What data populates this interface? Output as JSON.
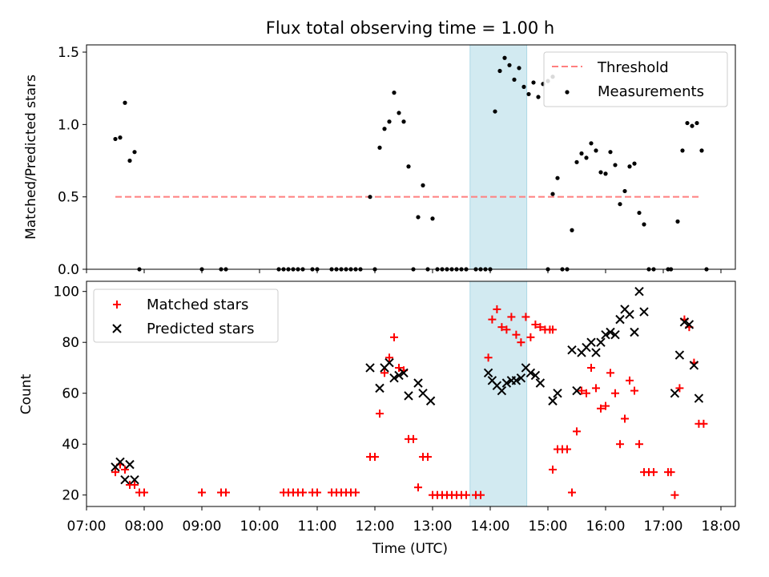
{
  "figure": {
    "title": "Flux total observing time = 1.00 h",
    "xlabel": "Time (UTC)",
    "x_ticks": [
      "07:00",
      "08:00",
      "09:00",
      "10:00",
      "11:00",
      "12:00",
      "13:00",
      "14:00",
      "15:00",
      "16:00",
      "17:00",
      "18:00"
    ]
  },
  "chart_data": [
    {
      "type": "scatter",
      "panel": "top",
      "ylabel": "Matched/Predicted stars",
      "xlim": [
        "07:00",
        "18:15"
      ],
      "ylim": [
        0,
        1.55
      ],
      "y_ticks": [
        "0.0",
        "0.5",
        "1.0",
        "1.5"
      ],
      "legend_position": "top-right",
      "highlight_span": {
        "start": "13:39",
        "end": "14:38",
        "color": "#add8e6"
      },
      "series": [
        {
          "name": "Threshold",
          "kind": "dashed-line",
          "color": "#ff7f7f",
          "points": [
            [
              "07:30",
              0.5
            ],
            [
              "17:40",
              0.5
            ]
          ]
        },
        {
          "name": "Measurements",
          "kind": "dot",
          "color": "#000000",
          "points": [
            [
              "07:30",
              0.9
            ],
            [
              "07:35",
              0.91
            ],
            [
              "07:40",
              1.15
            ],
            [
              "07:45",
              0.75
            ],
            [
              "07:50",
              0.81
            ],
            [
              "07:55",
              0.0
            ],
            [
              "09:00",
              0.0
            ],
            [
              "09:20",
              0.0
            ],
            [
              "09:25",
              0.0
            ],
            [
              "10:20",
              0.0
            ],
            [
              "10:25",
              0.0
            ],
            [
              "10:30",
              0.0
            ],
            [
              "10:35",
              0.0
            ],
            [
              "10:40",
              0.0
            ],
            [
              "10:45",
              0.0
            ],
            [
              "10:55",
              0.0
            ],
            [
              "11:00",
              0.0
            ],
            [
              "11:15",
              0.0
            ],
            [
              "11:20",
              0.0
            ],
            [
              "11:25",
              0.0
            ],
            [
              "11:30",
              0.0
            ],
            [
              "11:35",
              0.0
            ],
            [
              "11:40",
              0.0
            ],
            [
              "11:45",
              0.0
            ],
            [
              "11:55",
              0.5
            ],
            [
              "12:00",
              0.0
            ],
            [
              "12:05",
              0.84
            ],
            [
              "12:10",
              0.97
            ],
            [
              "12:15",
              1.02
            ],
            [
              "12:20",
              1.22
            ],
            [
              "12:25",
              1.08
            ],
            [
              "12:30",
              1.02
            ],
            [
              "12:35",
              0.71
            ],
            [
              "12:40",
              0.0
            ],
            [
              "12:45",
              0.36
            ],
            [
              "12:50",
              0.58
            ],
            [
              "12:55",
              0.0
            ],
            [
              "13:00",
              0.35
            ],
            [
              "13:05",
              0.0
            ],
            [
              "13:10",
              0.0
            ],
            [
              "13:15",
              0.0
            ],
            [
              "13:20",
              0.0
            ],
            [
              "13:25",
              0.0
            ],
            [
              "13:30",
              0.0
            ],
            [
              "13:35",
              0.0
            ],
            [
              "13:45",
              0.0
            ],
            [
              "13:50",
              0.0
            ],
            [
              "13:55",
              0.0
            ],
            [
              "14:00",
              0.0
            ],
            [
              "14:05",
              1.09
            ],
            [
              "14:10",
              1.37
            ],
            [
              "14:15",
              1.46
            ],
            [
              "14:20",
              1.41
            ],
            [
              "14:25",
              1.31
            ],
            [
              "14:30",
              1.39
            ],
            [
              "14:35",
              1.26
            ],
            [
              "14:40",
              1.21
            ],
            [
              "14:45",
              1.29
            ],
            [
              "14:50",
              1.19
            ],
            [
              "14:55",
              1.28
            ],
            [
              "15:00",
              1.3
            ],
            [
              "15:05",
              1.33
            ],
            [
              "15:00",
              0.0
            ],
            [
              "15:05",
              0.52
            ],
            [
              "15:10",
              0.63
            ],
            [
              "15:15",
              0.0
            ],
            [
              "15:20",
              0.0
            ],
            [
              "15:25",
              0.27
            ],
            [
              "15:30",
              0.74
            ],
            [
              "15:35",
              0.8
            ],
            [
              "15:40",
              0.77
            ],
            [
              "15:45",
              0.87
            ],
            [
              "15:50",
              0.82
            ],
            [
              "15:55",
              0.67
            ],
            [
              "16:00",
              0.66
            ],
            [
              "16:05",
              0.81
            ],
            [
              "16:10",
              0.72
            ],
            [
              "16:15",
              0.45
            ],
            [
              "16:20",
              0.54
            ],
            [
              "16:25",
              0.71
            ],
            [
              "16:30",
              0.73
            ],
            [
              "16:35",
              0.39
            ],
            [
              "16:40",
              0.31
            ],
            [
              "16:45",
              0.0
            ],
            [
              "16:50",
              0.0
            ],
            [
              "17:05",
              0.0
            ],
            [
              "17:08",
              0.0
            ],
            [
              "17:15",
              0.33
            ],
            [
              "17:20",
              0.82
            ],
            [
              "17:25",
              1.01
            ],
            [
              "17:30",
              0.99
            ],
            [
              "17:35",
              1.01
            ],
            [
              "17:40",
              0.82
            ],
            [
              "17:45",
              0.0
            ]
          ]
        }
      ]
    },
    {
      "type": "scatter",
      "panel": "bottom",
      "ylabel": "Count",
      "xlabel": "Time (UTC)",
      "xlim": [
        "07:00",
        "18:15"
      ],
      "ylim": [
        15.5,
        104
      ],
      "y_ticks": [
        "20",
        "40",
        "60",
        "80",
        "100"
      ],
      "legend_position": "top-left",
      "highlight_span": {
        "start": "13:39",
        "end": "14:38",
        "color": "#add8e6"
      },
      "series": [
        {
          "name": "Matched stars",
          "kind": "plus",
          "color": "#ff0000",
          "points": [
            [
              "07:30",
              29
            ],
            [
              "07:35",
              32
            ],
            [
              "07:40",
              30
            ],
            [
              "07:45",
              24
            ],
            [
              "07:50",
              24
            ],
            [
              "07:55",
              21
            ],
            [
              "08:00",
              21
            ],
            [
              "09:00",
              21
            ],
            [
              "09:20",
              21
            ],
            [
              "09:25",
              21
            ],
            [
              "10:25",
              21
            ],
            [
              "10:30",
              21
            ],
            [
              "10:35",
              21
            ],
            [
              "10:40",
              21
            ],
            [
              "10:45",
              21
            ],
            [
              "10:55",
              21
            ],
            [
              "11:00",
              21
            ],
            [
              "11:15",
              21
            ],
            [
              "11:20",
              21
            ],
            [
              "11:25",
              21
            ],
            [
              "11:30",
              21
            ],
            [
              "11:35",
              21
            ],
            [
              "11:40",
              21
            ],
            [
              "11:55",
              35
            ],
            [
              "12:00",
              35
            ],
            [
              "12:05",
              52
            ],
            [
              "12:10",
              68
            ],
            [
              "12:15",
              74
            ],
            [
              "12:20",
              82
            ],
            [
              "12:25",
              70
            ],
            [
              "12:30",
              69
            ],
            [
              "12:35",
              42
            ],
            [
              "12:40",
              42
            ],
            [
              "12:45",
              23
            ],
            [
              "12:50",
              35
            ],
            [
              "12:55",
              35
            ],
            [
              "13:00",
              20
            ],
            [
              "13:05",
              20
            ],
            [
              "13:10",
              20
            ],
            [
              "13:15",
              20
            ],
            [
              "13:20",
              20
            ],
            [
              "13:25",
              20
            ],
            [
              "13:30",
              20
            ],
            [
              "13:35",
              20
            ],
            [
              "13:45",
              20
            ],
            [
              "13:50",
              20
            ],
            [
              "13:58",
              74
            ],
            [
              "14:02",
              89
            ],
            [
              "14:07",
              93
            ],
            [
              "14:12",
              86
            ],
            [
              "14:17",
              85
            ],
            [
              "14:22",
              90
            ],
            [
              "14:27",
              83
            ],
            [
              "14:32",
              80
            ],
            [
              "14:37",
              90
            ],
            [
              "14:42",
              82
            ],
            [
              "14:47",
              87
            ],
            [
              "14:52",
              86
            ],
            [
              "14:57",
              85
            ],
            [
              "15:02",
              85
            ],
            [
              "15:05",
              85
            ],
            [
              "15:05",
              30
            ],
            [
              "15:10",
              38
            ],
            [
              "15:15",
              38
            ],
            [
              "15:20",
              38
            ],
            [
              "15:25",
              21
            ],
            [
              "15:30",
              45
            ],
            [
              "15:35",
              61
            ],
            [
              "15:40",
              60
            ],
            [
              "15:45",
              70
            ],
            [
              "15:50",
              62
            ],
            [
              "15:55",
              54
            ],
            [
              "16:00",
              55
            ],
            [
              "16:05",
              68
            ],
            [
              "16:10",
              60
            ],
            [
              "16:15",
              40
            ],
            [
              "16:20",
              50
            ],
            [
              "16:25",
              65
            ],
            [
              "16:30",
              61
            ],
            [
              "16:35",
              40
            ],
            [
              "16:40",
              29
            ],
            [
              "16:45",
              29
            ],
            [
              "16:50",
              29
            ],
            [
              "17:05",
              29
            ],
            [
              "17:08",
              29
            ],
            [
              "17:12",
              20
            ],
            [
              "17:17",
              62
            ],
            [
              "17:22",
              89
            ],
            [
              "17:27",
              86
            ],
            [
              "17:32",
              72
            ],
            [
              "17:37",
              48
            ],
            [
              "17:42",
              48
            ]
          ]
        },
        {
          "name": "Predicted stars",
          "kind": "x",
          "color": "#000000",
          "points": [
            [
              "07:30",
              31
            ],
            [
              "07:35",
              33
            ],
            [
              "07:40",
              26
            ],
            [
              "07:45",
              32
            ],
            [
              "07:50",
              26
            ],
            [
              "11:55",
              70
            ],
            [
              "12:05",
              62
            ],
            [
              "12:10",
              70
            ],
            [
              "12:15",
              72
            ],
            [
              "12:20",
              66
            ],
            [
              "12:25",
              67
            ],
            [
              "12:30",
              68
            ],
            [
              "12:35",
              59
            ],
            [
              "12:45",
              64
            ],
            [
              "12:50",
              60
            ],
            [
              "12:58",
              57
            ],
            [
              "13:58",
              68
            ],
            [
              "14:02",
              65
            ],
            [
              "14:07",
              63
            ],
            [
              "14:12",
              61
            ],
            [
              "14:17",
              64
            ],
            [
              "14:22",
              65
            ],
            [
              "14:27",
              65
            ],
            [
              "14:32",
              66
            ],
            [
              "14:37",
              70
            ],
            [
              "14:42",
              68
            ],
            [
              "14:47",
              67
            ],
            [
              "14:52",
              64
            ],
            [
              "15:05",
              57
            ],
            [
              "15:10",
              60
            ],
            [
              "15:25",
              77
            ],
            [
              "15:30",
              61
            ],
            [
              "15:35",
              76
            ],
            [
              "15:40",
              78
            ],
            [
              "15:45",
              80
            ],
            [
              "15:50",
              76
            ],
            [
              "15:55",
              80
            ],
            [
              "16:00",
              83
            ],
            [
              "16:05",
              84
            ],
            [
              "16:10",
              83
            ],
            [
              "16:15",
              89
            ],
            [
              "16:20",
              93
            ],
            [
              "16:25",
              91
            ],
            [
              "16:30",
              84
            ],
            [
              "16:35",
              100
            ],
            [
              "16:40",
              92
            ],
            [
              "17:12",
              60
            ],
            [
              "17:17",
              75
            ],
            [
              "17:22",
              88
            ],
            [
              "17:27",
              87
            ],
            [
              "17:32",
              71
            ],
            [
              "17:37",
              58
            ]
          ]
        }
      ]
    }
  ]
}
